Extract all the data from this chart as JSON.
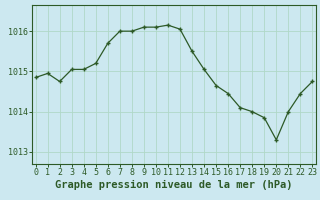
{
  "x": [
    0,
    1,
    2,
    3,
    4,
    5,
    6,
    7,
    8,
    9,
    10,
    11,
    12,
    13,
    14,
    15,
    16,
    17,
    18,
    19,
    20,
    21,
    22,
    23
  ],
  "y": [
    1014.85,
    1014.95,
    1014.75,
    1015.05,
    1015.05,
    1015.2,
    1015.7,
    1016.0,
    1016.0,
    1016.1,
    1016.1,
    1016.15,
    1016.05,
    1015.5,
    1015.05,
    1014.65,
    1014.45,
    1014.1,
    1014.0,
    1013.85,
    1013.3,
    1014.0,
    1014.45,
    1014.75
  ],
  "bg_color": "#cce8f0",
  "line_color": "#2d5a27",
  "marker_color": "#2d5a27",
  "grid_color_v": "#b0d8c8",
  "grid_color_h": "#b0d8c8",
  "axis_label_color": "#2d5a27",
  "spine_color": "#2d5a27",
  "yticks": [
    1013,
    1014,
    1015,
    1016
  ],
  "xticks": [
    0,
    1,
    2,
    3,
    4,
    5,
    6,
    7,
    8,
    9,
    10,
    11,
    12,
    13,
    14,
    15,
    16,
    17,
    18,
    19,
    20,
    21,
    22,
    23
  ],
  "ylim": [
    1012.7,
    1016.65
  ],
  "xlim": [
    -0.3,
    23.3
  ],
  "title": "Graphe pression niveau de la mer (hPa)",
  "title_fontsize": 7.5,
  "tick_fontsize": 6.0
}
